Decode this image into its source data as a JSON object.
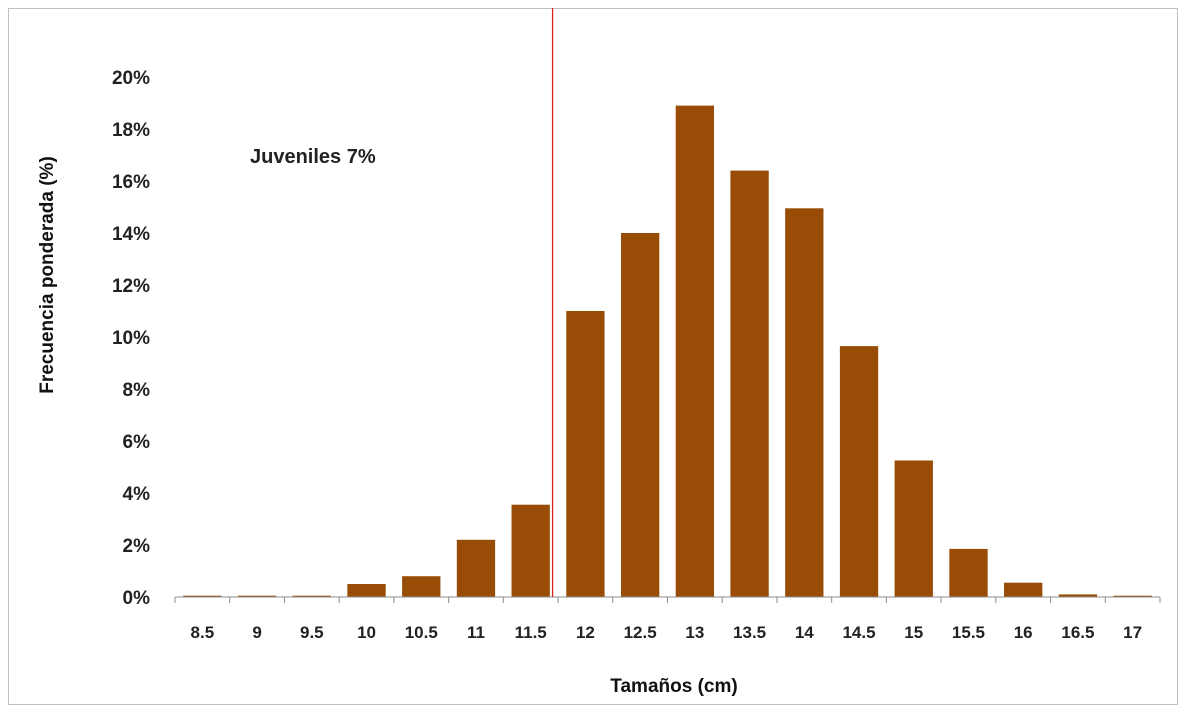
{
  "chart_data": {
    "type": "bar",
    "xlabel": "Tamaños (cm)",
    "ylabel": "Frecuencia ponderada (%)",
    "ylim": [
      0,
      20
    ],
    "y_ticks": [
      "0%",
      "2%",
      "4%",
      "6%",
      "8%",
      "10%",
      "12%",
      "14%",
      "16%",
      "18%",
      "20%"
    ],
    "categories": [
      "8.5",
      "9",
      "9.5",
      "10",
      "10.5",
      "11",
      "11.5",
      "12",
      "12.5",
      "13",
      "13.5",
      "14",
      "14.5",
      "15",
      "15.5",
      "16",
      "16.5",
      "17"
    ],
    "values": [
      0.05,
      0.05,
      0.05,
      0.5,
      0.8,
      2.2,
      3.55,
      11.0,
      14.0,
      18.9,
      16.4,
      14.95,
      9.65,
      5.25,
      1.85,
      0.55,
      0.1,
      0.05
    ],
    "bar_color": "#994c05",
    "grid": false,
    "annotations": [
      {
        "text": "Juveniles 7%"
      }
    ],
    "reference_line": {
      "x": 11.7,
      "color": "#e02020"
    }
  }
}
